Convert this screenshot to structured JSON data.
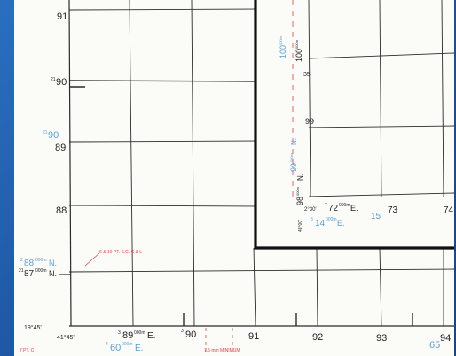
{
  "background_color": "#1e5aa8",
  "grid_line_color": "#2b2b2b",
  "blue_text_color": "#5aa0d8",
  "red_text_color": "#e04040",
  "main_map": {
    "left_labels": {
      "n91": "91",
      "n90_prefix": "21",
      "n90": "90",
      "blue90_prefix": "21",
      "blue90": "90",
      "n89": "89",
      "n88": "88",
      "blue88_prefix": "2",
      "blue88": "88",
      "blue88_sup": "000m",
      "blue88_suffix": "N.",
      "n87_prefix": "21",
      "n87": "87",
      "n87_sup": "000m",
      "n87_suffix": "N."
    },
    "bottom_labels": {
      "lat_corner": "19°45'",
      "lon_corner": "41°45'",
      "e89_prefix": "3",
      "e89": "89",
      "e89_sup": "000m",
      "e89_suffix": "E.",
      "e90_prefix": "3",
      "e90": "90",
      "e91": "91",
      "e92": "92",
      "e93": "93",
      "e94": "94",
      "blue60_prefix": "4",
      "blue60": "60",
      "blue60_sup": "000m",
      "blue60_suffix": "E.",
      "blue65": "65"
    },
    "red_notes": {
      "spot_height": "6 & 10 PT. S.C. C & L",
      "minimum": "7.5 mm  MINIMUM",
      "left_edge": "7 PT. C"
    }
  },
  "inset_map": {
    "vertical_labels": {
      "n100": "100",
      "n100_sup": "000m",
      "blue_n100": "100",
      "blue_n100_sup": "000m",
      "n99": "99",
      "blue_n99": "99",
      "blue_n99_sup": "000m",
      "blue_n99_suffix": "N.",
      "n98": "98",
      "n98_sup": "000m",
      "n98_suffix": "N."
    },
    "right_labels": {
      "n35": "35",
      "n99_short": "99"
    },
    "bottom_labels": {
      "corner_lon": "2°30'",
      "corner_lat": "48°00'",
      "e72_prefix": "7",
      "e72": "72",
      "e72_sup": "000m",
      "e72_suffix": "E.",
      "e73": "73",
      "e74": "74",
      "blue14_prefix": "3",
      "blue14": "14",
      "blue14_sup": "000m",
      "blue14_suffix": "E.",
      "blue15": "15"
    }
  }
}
